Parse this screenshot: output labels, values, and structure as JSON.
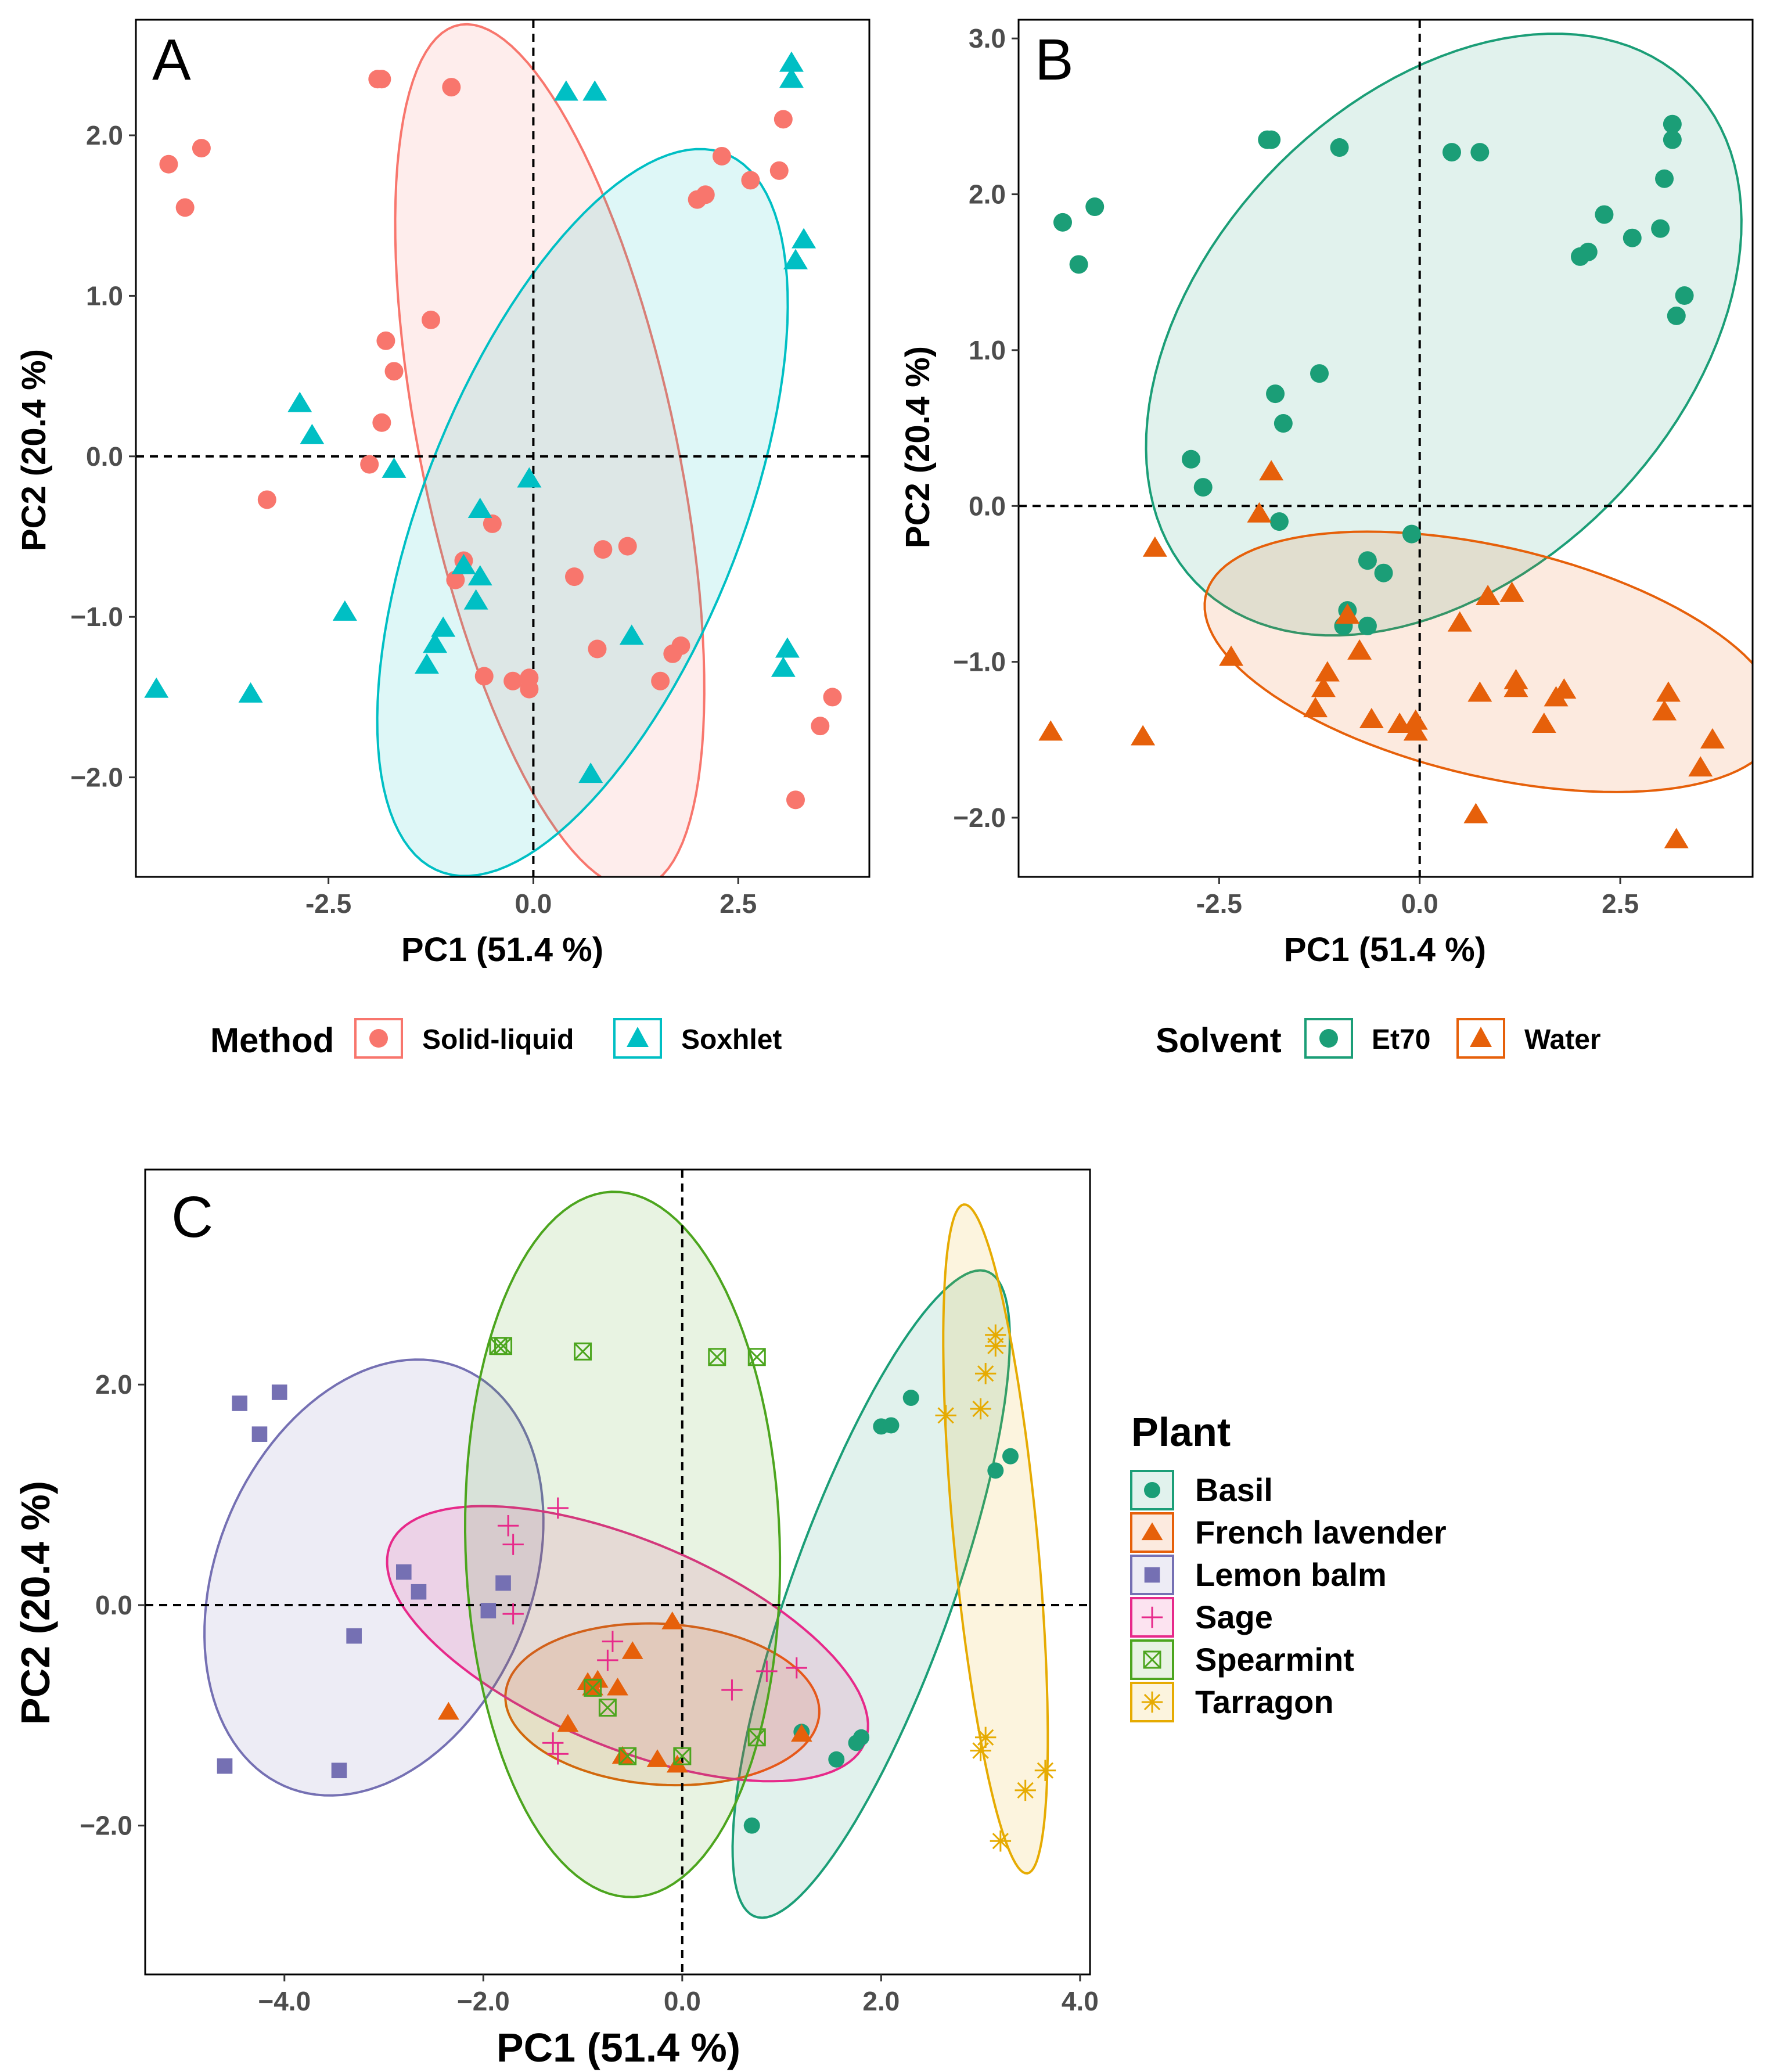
{
  "colors": {
    "solid_liquid": "#F8766D",
    "soxhlet": "#00BFC4",
    "et70": "#1B9E77",
    "water": "#E6600A",
    "basil": "#1B9E77",
    "french_lavender": "#E6600A",
    "lemon_balm": "#7570B3",
    "sage": "#E7298A",
    "spearmint": "#4CA51E",
    "tarragon": "#E6AB02"
  },
  "chart_data": [
    {
      "id": "A",
      "type": "scatter",
      "panel_letter": "A",
      "xlabel": "PC1 (51.4 %)",
      "ylabel": "PC2 (20.4 %)",
      "xlim": [
        -4.85,
        4.1
      ],
      "ylim": [
        -2.62,
        2.72
      ],
      "x_ticks": [
        -2.5,
        0.0,
        2.5
      ],
      "x_tick_labels": [
        "-2.5",
        "0.0",
        "2.5"
      ],
      "y_ticks": [
        -2.0,
        -1.0,
        0.0,
        1.0,
        2.0
      ],
      "y_tick_labels": [
        "−2.0",
        "−1.0",
        "0.0",
        "1.0",
        "2.0"
      ],
      "legend": {
        "title": "Method",
        "position": "bottom",
        "entries": [
          "Solid-liquid",
          "Soxhlet"
        ]
      },
      "series": [
        {
          "name": "Solid-liquid",
          "color": "#F8766D",
          "shape": "circle",
          "ellipse": {
            "cx": 0.2,
            "cy": 0.0,
            "a": 2.95,
            "b": 1.45,
            "angle": -62
          },
          "points": [
            [
              -1.9,
              2.35
            ],
            [
              -1.85,
              2.35
            ],
            [
              -1.0,
              2.3
            ],
            [
              -4.45,
              1.82
            ],
            [
              -4.05,
              1.92
            ],
            [
              -4.25,
              1.55
            ],
            [
              3.05,
              2.1
            ],
            [
              3.0,
              1.78
            ],
            [
              2.3,
              1.87
            ],
            [
              2.65,
              1.72
            ],
            [
              2.0,
              1.6
            ],
            [
              2.1,
              1.63
            ],
            [
              -1.25,
              0.85
            ],
            [
              -1.8,
              0.72
            ],
            [
              -1.7,
              0.53
            ],
            [
              -1.85,
              0.21
            ],
            [
              -2.0,
              -0.05
            ],
            [
              -3.25,
              -0.27
            ],
            [
              -0.5,
              -0.42
            ],
            [
              -0.85,
              -0.65
            ],
            [
              -0.95,
              -0.77
            ],
            [
              0.5,
              -0.75
            ],
            [
              0.85,
              -0.58
            ],
            [
              1.15,
              -0.56
            ],
            [
              0.78,
              -1.2
            ],
            [
              1.8,
              -1.18
            ],
            [
              1.7,
              -1.23
            ],
            [
              -0.6,
              -1.37
            ],
            [
              -0.25,
              -1.4
            ],
            [
              -0.05,
              -1.38
            ],
            [
              -0.05,
              -1.45
            ],
            [
              1.55,
              -1.4
            ],
            [
              3.65,
              -1.5
            ],
            [
              3.5,
              -1.68
            ],
            [
              3.2,
              -2.14
            ]
          ]
        },
        {
          "name": "Soxhlet",
          "color": "#00BFC4",
          "shape": "triangle",
          "ellipse": {
            "cx": 0.6,
            "cy": -0.35,
            "a": 3.0,
            "b": 1.55,
            "angle": 40
          },
          "points": [
            [
              0.4,
              2.27
            ],
            [
              0.75,
              2.27
            ],
            [
              3.15,
              2.45
            ],
            [
              3.15,
              2.35
            ],
            [
              3.3,
              1.35
            ],
            [
              3.2,
              1.22
            ],
            [
              -2.85,
              0.33
            ],
            [
              -2.7,
              0.13
            ],
            [
              -1.7,
              -0.08
            ],
            [
              -0.65,
              -0.33
            ],
            [
              -0.05,
              -0.14
            ],
            [
              -0.85,
              -0.68
            ],
            [
              -0.65,
              -0.75
            ],
            [
              -0.7,
              -0.9
            ],
            [
              -2.3,
              -0.97
            ],
            [
              -1.1,
              -1.07
            ],
            [
              -1.2,
              -1.17
            ],
            [
              -1.3,
              -1.3
            ],
            [
              1.2,
              -1.12
            ],
            [
              3.1,
              -1.2
            ],
            [
              3.05,
              -1.32
            ],
            [
              -4.6,
              -1.45
            ],
            [
              -3.45,
              -1.48
            ],
            [
              0.7,
              -1.98
            ]
          ]
        }
      ]
    },
    {
      "id": "B",
      "type": "scatter",
      "panel_letter": "B",
      "xlabel": "PC1 (51.4 %)",
      "ylabel": "PC2 (20.4 %)",
      "xlim": [
        -5.0,
        4.15
      ],
      "ylim": [
        -2.38,
        3.12
      ],
      "x_ticks": [
        -2.5,
        0.0,
        2.5
      ],
      "x_tick_labels": [
        "-2.5",
        "0.0",
        "2.5"
      ],
      "y_ticks": [
        -2.0,
        -1.0,
        0.0,
        1.0,
        2.0,
        3.0
      ],
      "y_tick_labels": [
        "−2.0",
        "−1.0",
        "0.0",
        "1.0",
        "2.0",
        "3.0"
      ],
      "legend": {
        "title": "Solvent",
        "position": "bottom",
        "entries": [
          "Et70",
          "Water"
        ]
      },
      "series": [
        {
          "name": "Et70",
          "color": "#1B9E77",
          "shape": "circle",
          "ellipse": {
            "cx": 0.3,
            "cy": 1.1,
            "a": 3.8,
            "b": 1.75,
            "angle": 14
          },
          "points": [
            [
              -1.9,
              2.35
            ],
            [
              -1.85,
              2.35
            ],
            [
              -1.0,
              2.3
            ],
            [
              0.4,
              2.27
            ],
            [
              0.75,
              2.27
            ],
            [
              -4.45,
              1.82
            ],
            [
              -4.05,
              1.92
            ],
            [
              -4.25,
              1.55
            ],
            [
              3.15,
              2.45
            ],
            [
              3.15,
              2.35
            ],
            [
              3.05,
              2.1
            ],
            [
              3.0,
              1.78
            ],
            [
              2.3,
              1.87
            ],
            [
              2.65,
              1.72
            ],
            [
              2.0,
              1.6
            ],
            [
              2.1,
              1.63
            ],
            [
              3.3,
              1.35
            ],
            [
              3.2,
              1.22
            ],
            [
              -1.25,
              0.85
            ],
            [
              -1.8,
              0.72
            ],
            [
              -1.7,
              0.53
            ],
            [
              -2.85,
              0.3
            ],
            [
              -2.7,
              0.12
            ],
            [
              -1.75,
              -0.1
            ],
            [
              -0.1,
              -0.18
            ],
            [
              -0.65,
              -0.35
            ],
            [
              -0.45,
              -0.43
            ],
            [
              -0.9,
              -0.67
            ],
            [
              -0.95,
              -0.77
            ],
            [
              -0.65,
              -0.77
            ]
          ]
        },
        {
          "name": "Water",
          "color": "#E6600A",
          "shape": "triangle",
          "ellipse": {
            "cx": 0.9,
            "cy": -1.0,
            "a": 3.6,
            "b": 0.75,
            "angle": -6
          },
          "points": [
            [
              -1.85,
              0.22
            ],
            [
              -2.0,
              -0.05
            ],
            [
              -3.3,
              -0.27
            ],
            [
              -0.9,
              -0.7
            ],
            [
              -0.75,
              -0.93
            ],
            [
              0.5,
              -0.75
            ],
            [
              0.85,
              -0.58
            ],
            [
              1.15,
              -0.56
            ],
            [
              -2.35,
              -0.97
            ],
            [
              -1.15,
              -1.07
            ],
            [
              -1.2,
              -1.17
            ],
            [
              -1.3,
              -1.3
            ],
            [
              0.75,
              -1.2
            ],
            [
              1.2,
              -1.12
            ],
            [
              1.2,
              -1.17
            ],
            [
              1.8,
              -1.18
            ],
            [
              1.7,
              -1.23
            ],
            [
              3.1,
              -1.2
            ],
            [
              3.05,
              -1.32
            ],
            [
              -0.6,
              -1.37
            ],
            [
              -0.25,
              -1.4
            ],
            [
              -0.05,
              -1.38
            ],
            [
              -0.05,
              -1.45
            ],
            [
              1.55,
              -1.4
            ],
            [
              3.65,
              -1.5
            ],
            [
              3.5,
              -1.68
            ],
            [
              -4.6,
              -1.45
            ],
            [
              -3.45,
              -1.48
            ],
            [
              0.7,
              -1.98
            ],
            [
              3.2,
              -2.14
            ]
          ]
        }
      ]
    },
    {
      "id": "C",
      "type": "scatter",
      "panel_letter": "C",
      "xlabel": "PC1 (51.4 %)",
      "ylabel": "PC2 (20.4 %)",
      "xlim": [
        -5.4,
        4.1
      ],
      "ylim": [
        -3.35,
        3.95
      ],
      "x_ticks": [
        -4.0,
        -2.0,
        0.0,
        2.0,
        4.0
      ],
      "x_tick_labels": [
        "−4.0",
        "−2.0",
        "0.0",
        "2.0",
        "4.0"
      ],
      "y_ticks": [
        -2.0,
        0.0,
        2.0
      ],
      "y_tick_labels": [
        "−2.0",
        "0.0",
        "2.0"
      ],
      "legend": {
        "title": "Plant",
        "position": "right",
        "entries": [
          "Basil",
          "French lavender",
          "Lemon balm",
          "Sage",
          "Spearmint",
          "Tarragon"
        ]
      },
      "series": [
        {
          "name": "Basil",
          "color": "#1B9E77",
          "shape": "circle",
          "ellipse": {
            "cx": 1.9,
            "cy": 0.1,
            "a": 3.15,
            "b": 0.8,
            "angle": 68
          },
          "points": [
            [
              2.0,
              1.62
            ],
            [
              2.1,
              1.63
            ],
            [
              2.3,
              1.88
            ],
            [
              3.15,
              1.22
            ],
            [
              3.3,
              1.35
            ],
            [
              1.2,
              -1.15
            ],
            [
              1.55,
              -1.4
            ],
            [
              1.75,
              -1.25
            ],
            [
              1.8,
              -1.2
            ],
            [
              0.7,
              -2.0
            ]
          ]
        },
        {
          "name": "French lavender",
          "color": "#E6600A",
          "shape": "triangle",
          "ellipse": {
            "cx": -0.2,
            "cy": -0.9,
            "a": 1.58,
            "b": 0.73,
            "angle": -3
          },
          "points": [
            [
              -0.1,
              -0.15
            ],
            [
              -0.5,
              -0.42
            ],
            [
              -0.95,
              -0.7
            ],
            [
              -0.85,
              -0.68
            ],
            [
              -0.65,
              -0.75
            ],
            [
              -0.9,
              -0.75
            ],
            [
              -1.15,
              -1.08
            ],
            [
              -2.35,
              -0.97
            ],
            [
              -0.6,
              -1.37
            ],
            [
              -0.25,
              -1.4
            ],
            [
              -0.05,
              -1.45
            ],
            [
              1.2,
              -1.17
            ]
          ]
        },
        {
          "name": "Lemon balm",
          "color": "#7570B3",
          "shape": "square",
          "ellipse": {
            "cx": -3.1,
            "cy": 0.25,
            "a": 2.1,
            "b": 1.55,
            "angle": 60
          },
          "points": [
            [
              -4.45,
              1.83
            ],
            [
              -4.05,
              1.93
            ],
            [
              -4.25,
              1.55
            ],
            [
              -2.8,
              0.3
            ],
            [
              -2.65,
              0.12
            ],
            [
              -1.8,
              0.2
            ],
            [
              -1.95,
              -0.05
            ],
            [
              -3.3,
              -0.28
            ],
            [
              -4.6,
              -1.46
            ],
            [
              -3.45,
              -1.5
            ]
          ]
        },
        {
          "name": "Sage",
          "color": "#E7298A",
          "shape": "plus",
          "ellipse": {
            "cx": -0.55,
            "cy": -0.35,
            "a": 2.55,
            "b": 0.95,
            "angle": -20
          },
          "points": [
            [
              -1.25,
              0.88
            ],
            [
              -1.75,
              0.72
            ],
            [
              -1.7,
              0.55
            ],
            [
              -1.7,
              -0.08
            ],
            [
              -0.7,
              -0.33
            ],
            [
              -0.75,
              -0.5
            ],
            [
              1.15,
              -0.57
            ],
            [
              0.85,
              -0.6
            ],
            [
              0.5,
              -0.77
            ],
            [
              -1.3,
              -1.25
            ],
            [
              -1.25,
              -1.35
            ]
          ]
        },
        {
          "name": "Spearmint",
          "color": "#4CA51E",
          "shape": "square-x",
          "ellipse": {
            "cx": -0.6,
            "cy": 0.55,
            "a": 3.2,
            "b": 1.58,
            "angle": -88
          },
          "points": [
            [
              -1.85,
              2.35
            ],
            [
              -1.8,
              2.35
            ],
            [
              -1.0,
              2.3
            ],
            [
              0.35,
              2.25
            ],
            [
              0.75,
              2.25
            ],
            [
              -0.9,
              -0.75
            ],
            [
              -0.75,
              -0.93
            ],
            [
              -0.55,
              -1.37
            ],
            [
              0.0,
              -1.37
            ],
            [
              0.75,
              -1.2
            ]
          ]
        },
        {
          "name": "Tarragon",
          "color": "#E6AB02",
          "shape": "star",
          "ellipse": {
            "cx": 3.15,
            "cy": 0.6,
            "a": 3.05,
            "b": 0.42,
            "angle": -84
          },
          "points": [
            [
              3.15,
              2.45
            ],
            [
              3.15,
              2.35
            ],
            [
              3.05,
              2.1
            ],
            [
              3.0,
              1.78
            ],
            [
              2.65,
              1.72
            ],
            [
              3.05,
              -1.2
            ],
            [
              3.0,
              -1.32
            ],
            [
              3.65,
              -1.5
            ],
            [
              3.45,
              -1.68
            ],
            [
              3.2,
              -2.14
            ]
          ]
        }
      ]
    }
  ]
}
